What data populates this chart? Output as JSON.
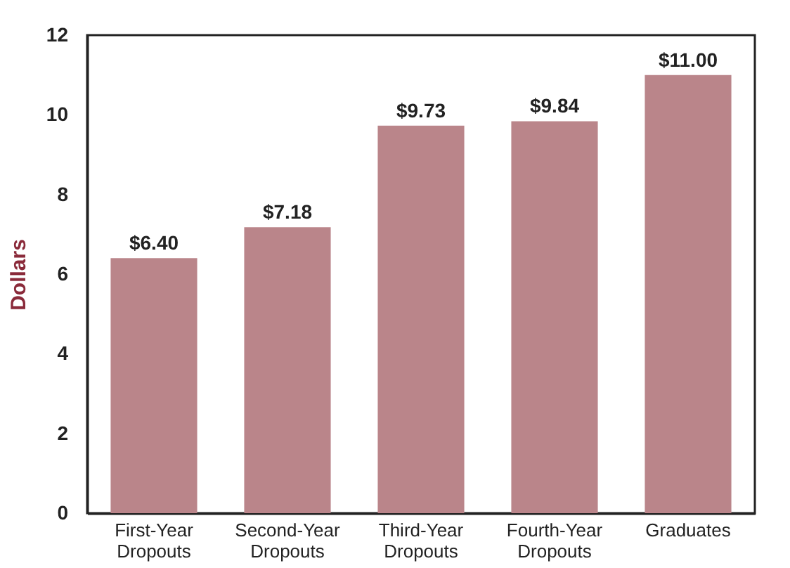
{
  "chart_data": {
    "type": "bar",
    "ylabel": "Dollars",
    "categories": [
      "First-Year Dropouts",
      "Second-Year Dropouts",
      "Third-Year Dropouts",
      "Fourth-Year Dropouts",
      "Graduates"
    ],
    "values": [
      6.4,
      7.18,
      9.73,
      9.84,
      11.0
    ],
    "value_labels": [
      "$6.40",
      "$7.18",
      "$9.73",
      "$9.84",
      "$11.00"
    ],
    "color": "#ba858a",
    "ylim": [
      0,
      12
    ],
    "yticks": [
      0,
      2,
      4,
      6,
      8,
      10,
      12
    ],
    "grid": false
  }
}
